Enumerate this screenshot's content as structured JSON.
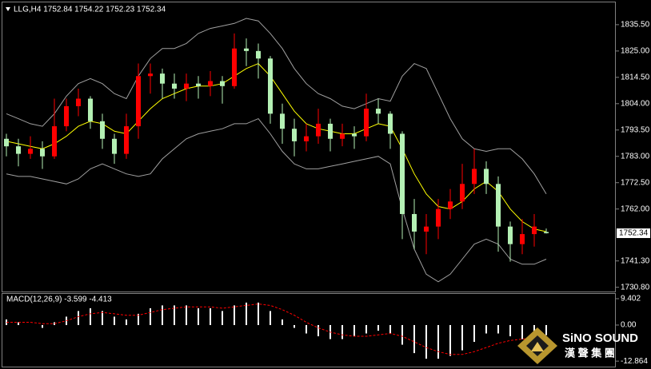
{
  "chart_data": [
    {
      "type": "candlestick",
      "title": "LLG,H4 1752.84 1754.22 1752.23 1752.34",
      "up_color": "#ff0000",
      "down_color": "#b4f0b4",
      "ohlc": [
        [
          1790,
          1792,
          1783,
          1787
        ],
        [
          1787,
          1790,
          1779,
          1784
        ],
        [
          1784,
          1791,
          1782,
          1786
        ],
        [
          1786,
          1789,
          1778,
          1783
        ],
        [
          1783,
          1806,
          1782,
          1795
        ],
        [
          1795,
          1806,
          1793,
          1803
        ],
        [
          1803,
          1810,
          1799,
          1806
        ],
        [
          1806,
          1807,
          1794,
          1797
        ],
        [
          1797,
          1800,
          1786,
          1790
        ],
        [
          1790,
          1792,
          1780,
          1784
        ],
        [
          1784,
          1800,
          1782,
          1795
        ],
        [
          1795,
          1820,
          1790,
          1815
        ],
        [
          1815,
          1820,
          1808,
          1816
        ],
        [
          1816,
          1818,
          1806,
          1812
        ],
        [
          1812,
          1816,
          1806,
          1810
        ],
        [
          1810,
          1816,
          1805,
          1812
        ],
        [
          1812,
          1815,
          1806,
          1811
        ],
        [
          1811,
          1817,
          1807,
          1813
        ],
        [
          1813,
          1815,
          1804,
          1811
        ],
        [
          1811,
          1832,
          1810,
          1826
        ],
        [
          1826,
          1830,
          1819,
          1825
        ],
        [
          1825,
          1828,
          1814,
          1822
        ],
        [
          1822,
          1823,
          1796,
          1800
        ],
        [
          1800,
          1804,
          1788,
          1794
        ],
        [
          1794,
          1798,
          1783,
          1789
        ],
        [
          1789,
          1796,
          1785,
          1791
        ],
        [
          1791,
          1802,
          1788,
          1796
        ],
        [
          1796,
          1798,
          1785,
          1790
        ],
        [
          1790,
          1796,
          1787,
          1792
        ],
        [
          1792,
          1795,
          1786,
          1791
        ],
        [
          1791,
          1808,
          1789,
          1802
        ],
        [
          1802,
          1806,
          1796,
          1800
        ],
        [
          1800,
          1801,
          1786,
          1792
        ],
        [
          1792,
          1793,
          1750,
          1760
        ],
        [
          1760,
          1766,
          1746,
          1753
        ],
        [
          1753,
          1760,
          1744,
          1755
        ],
        [
          1755,
          1766,
          1750,
          1762
        ],
        [
          1762,
          1770,
          1758,
          1765
        ],
        [
          1765,
          1780,
          1762,
          1772
        ],
        [
          1772,
          1786,
          1768,
          1778
        ],
        [
          1778,
          1781,
          1768,
          1772
        ],
        [
          1772,
          1775,
          1745,
          1755
        ],
        [
          1755,
          1757,
          1741,
          1748
        ],
        [
          1748,
          1758,
          1744,
          1752
        ],
        [
          1752,
          1760,
          1747,
          1755
        ],
        [
          1752.84,
          1754.22,
          1752.23,
          1752.34
        ]
      ],
      "series": [
        {
          "color": "#ffff00",
          "values": [
            1789,
            1788,
            1787,
            1786,
            1788,
            1791,
            1795,
            1797,
            1796,
            1793,
            1792,
            1797,
            1802,
            1806,
            1808,
            1810,
            1811,
            1811,
            1812,
            1815,
            1818,
            1820,
            1815,
            1808,
            1801,
            1796,
            1794,
            1793,
            1792,
            1792,
            1794,
            1796,
            1795,
            1786,
            1776,
            1768,
            1763,
            1762,
            1765,
            1770,
            1773,
            1769,
            1762,
            1757,
            1754,
            1753
          ]
        },
        {
          "color": "#a0a0a0",
          "values": [
            1800,
            1798,
            1796,
            1795,
            1800,
            1807,
            1812,
            1814,
            1812,
            1808,
            1806,
            1815,
            1822,
            1826,
            1826,
            1828,
            1832,
            1834,
            1835,
            1836,
            1838,
            1837,
            1832,
            1826,
            1818,
            1812,
            1808,
            1806,
            1803,
            1802,
            1804,
            1806,
            1805,
            1815,
            1820,
            1818,
            1808,
            1798,
            1790,
            1786,
            1785,
            1786,
            1786,
            1782,
            1776,
            1768
          ]
        },
        {
          "color": "#a0a0a0",
          "values": [
            1776,
            1775,
            1775,
            1774,
            1773,
            1772,
            1774,
            1778,
            1780,
            1778,
            1776,
            1775,
            1776,
            1782,
            1786,
            1790,
            1792,
            1793,
            1794,
            1796,
            1796,
            1798,
            1792,
            1785,
            1780,
            1778,
            1778,
            1779,
            1780,
            1781,
            1782,
            1783,
            1780,
            1762,
            1746,
            1736,
            1733,
            1736,
            1742,
            1748,
            1750,
            1748,
            1742,
            1740,
            1740,
            1742
          ]
        }
      ],
      "last_price": {
        "value": 1752.34,
        "label": "1752.34"
      },
      "ylim": [
        1729.1,
        1844.7
      ],
      "yticks": [
        {
          "value": 1835.5,
          "label": "1835.50"
        },
        {
          "value": 1825,
          "label": "1825.00"
        },
        {
          "value": 1814.5,
          "label": "1814.50"
        },
        {
          "value": 1804,
          "label": "1804.00"
        },
        {
          "value": 1793.5,
          "label": "1793.50"
        },
        {
          "value": 1783,
          "label": "1783.00"
        },
        {
          "value": 1772.5,
          "label": "1772.50"
        },
        {
          "value": 1762,
          "label": "1762.00"
        },
        {
          "value": 1741.3,
          "label": "1741.30"
        },
        {
          "value": 1730.8,
          "label": "1730.80"
        }
      ]
    },
    {
      "type": "macd",
      "title": "MACD(12,26,9) -3.599 -4.413",
      "histogram_color": "#ffffff",
      "signal_color": "#ff0000",
      "histogram": [
        2,
        1,
        0,
        -1,
        1,
        3,
        5,
        6,
        5,
        3,
        2,
        4,
        6,
        7,
        7,
        7,
        6,
        6,
        5,
        7,
        8,
        8,
        5,
        2,
        -1,
        -3,
        -4,
        -5,
        -5,
        -4,
        -3,
        -2,
        -3,
        -7,
        -10,
        -12,
        -12,
        -11,
        -9,
        -6,
        -3,
        -3,
        -4,
        -5,
        -4.5,
        -3.599
      ],
      "signal": [
        1,
        1,
        1,
        0.5,
        0.5,
        1.5,
        3,
        4,
        4.5,
        4,
        3.5,
        3.5,
        4.5,
        5.5,
        6,
        6.5,
        6.5,
        6.5,
        6,
        6.5,
        7,
        7.5,
        7,
        5.5,
        3.5,
        1,
        -1,
        -2.5,
        -3.5,
        -4,
        -4,
        -3.5,
        -3,
        -4,
        -6,
        -8,
        -9.5,
        -10.5,
        -10.5,
        -9.5,
        -8,
        -6.5,
        -5.5,
        -5,
        -4.7,
        -4.413
      ],
      "ylim": [
        -15.1,
        11.1
      ],
      "yticks": [
        9.402,
        {
          "value": 0,
          "label": "0.00"
        },
        -12.864
      ]
    }
  ],
  "branding": {
    "name": "SiNO SOUND",
    "subtitle": "漢 聲 集 團"
  }
}
